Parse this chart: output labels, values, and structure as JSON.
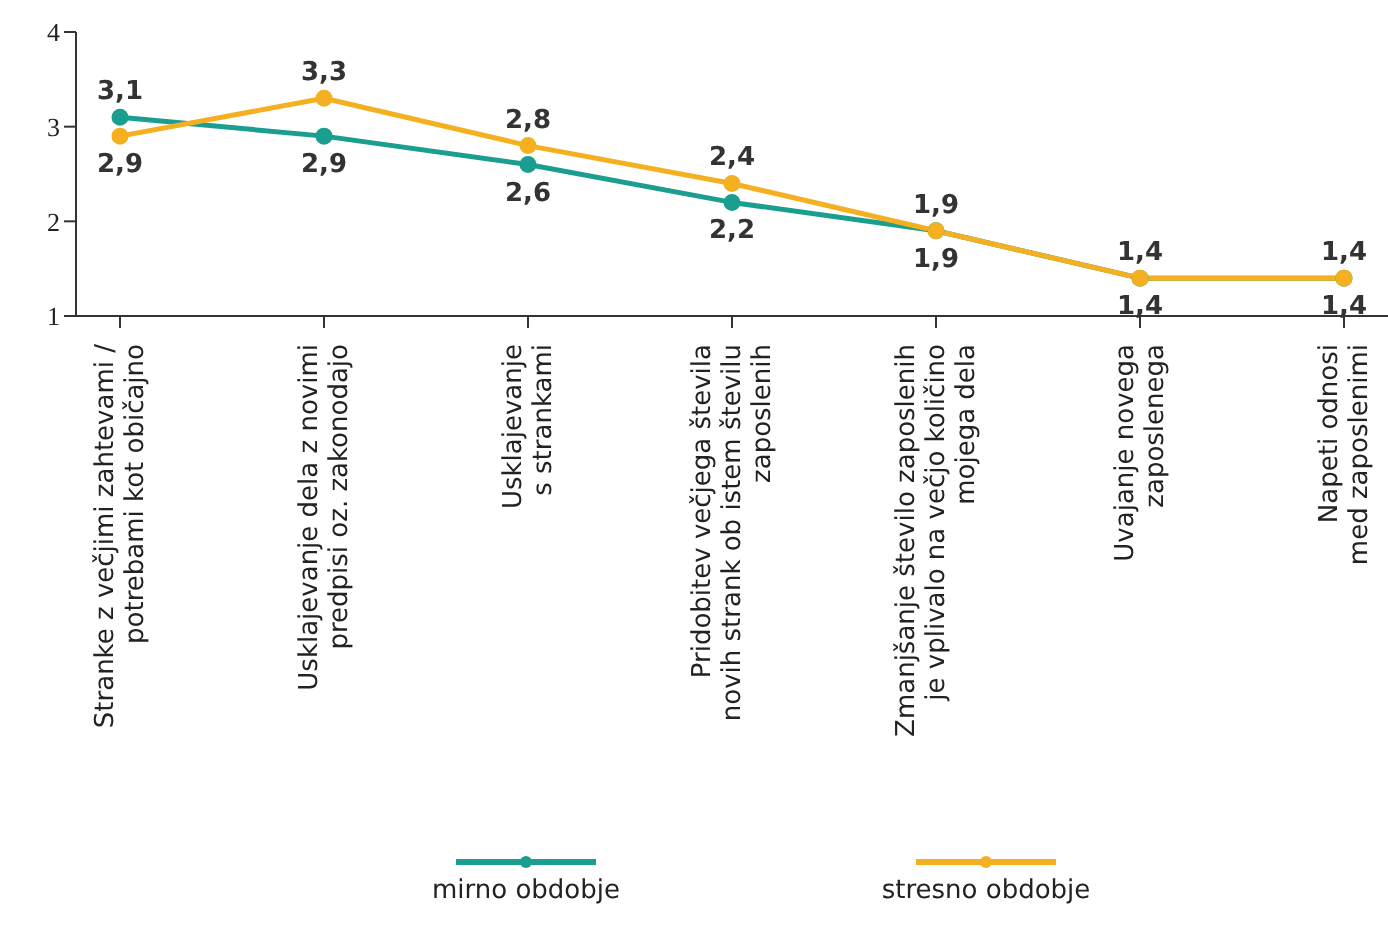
{
  "chart_data": {
    "type": "line",
    "categories": [
      "Stranke z večjimi zahtevami /\npotrebami kot običajno",
      "Usklajevanje dela z novimi\npredpisi oz. zakonodajo",
      "Usklajevanje\ns strankami",
      "Pridobitev večjega števila\nnovih strank ob istem številu\nzaposlenih",
      "Zmanjšanje število zaposlenih\nje vplivalo na večjo količino\nmojega dela",
      "Uvajanje novega\nzaposlenega",
      "Napeti odnosi\nmed zaposlenimi"
    ],
    "series": [
      {
        "name": "mirno obdobje",
        "color": "#1a9e8f",
        "values": [
          3.1,
          2.9,
          2.6,
          2.2,
          1.9,
          1.4,
          1.4
        ],
        "value_labels": [
          "3,1",
          "2,9",
          "2,6",
          "2,2",
          "1,9",
          "1,4",
          "1,4"
        ]
      },
      {
        "name": "stresno obdobje",
        "color": "#f5b021",
        "values": [
          2.9,
          3.3,
          2.8,
          2.4,
          1.9,
          1.4,
          1.4
        ],
        "value_labels": [
          "2,9",
          "3,3",
          "2,8",
          "2,4",
          "1,9",
          "1,4",
          "1,4"
        ]
      }
    ],
    "ylim": [
      1,
      4
    ],
    "yticks": [
      1,
      2,
      3,
      4
    ],
    "legend": "bottom",
    "marker": "circle"
  }
}
